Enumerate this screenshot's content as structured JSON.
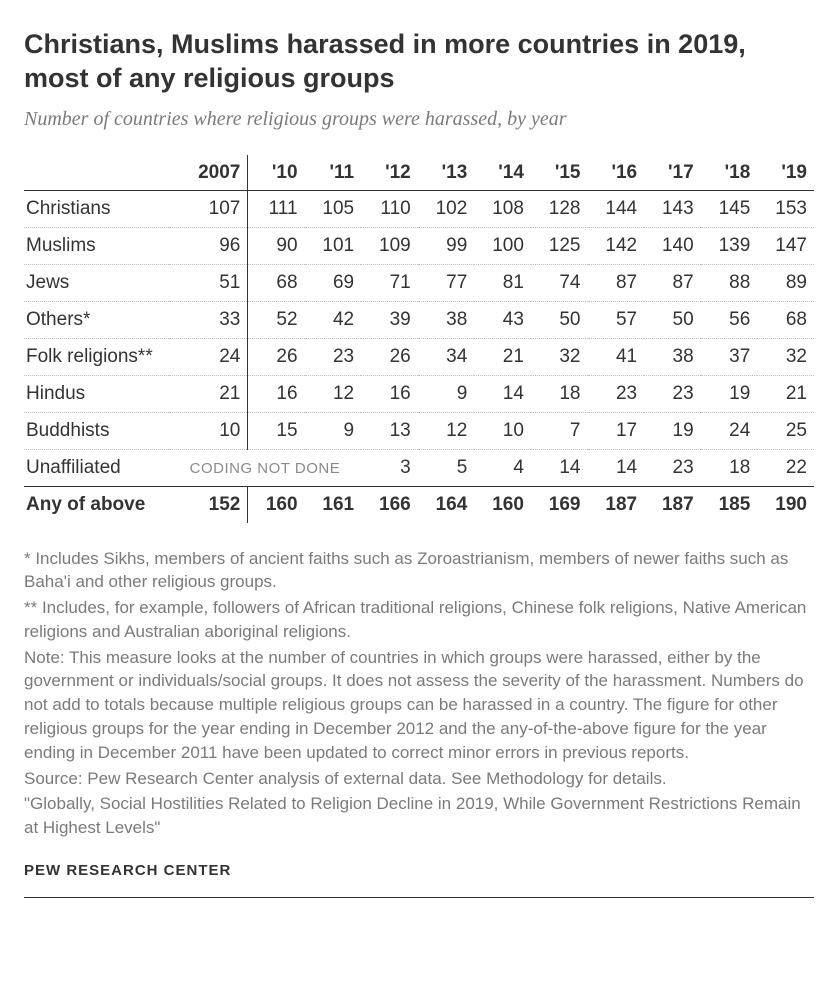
{
  "title": "Christians, Muslims harassed in more countries in 2019, most of any religious groups",
  "subtitle": "Number of countries where religious groups were harassed, by year",
  "table": {
    "columns": [
      "2007",
      "'10",
      "'11",
      "'12",
      "'13",
      "'14",
      "'15",
      "'16",
      "'17",
      "'18",
      "'19"
    ],
    "rows": [
      {
        "label": "Christians",
        "values": [
          "107",
          "111",
          "105",
          "110",
          "102",
          "108",
          "128",
          "144",
          "143",
          "145",
          "153"
        ]
      },
      {
        "label": "Muslims",
        "values": [
          "96",
          "90",
          "101",
          "109",
          "99",
          "100",
          "125",
          "142",
          "140",
          "139",
          "147"
        ]
      },
      {
        "label": "Jews",
        "values": [
          "51",
          "68",
          "69",
          "71",
          "77",
          "81",
          "74",
          "87",
          "87",
          "88",
          "89"
        ]
      },
      {
        "label": "Others*",
        "values": [
          "33",
          "52",
          "42",
          "39",
          "38",
          "43",
          "50",
          "57",
          "50",
          "56",
          "68"
        ]
      },
      {
        "label": "Folk religions**",
        "values": [
          "24",
          "26",
          "23",
          "26",
          "34",
          "21",
          "32",
          "41",
          "38",
          "37",
          "32"
        ]
      },
      {
        "label": "Hindus",
        "values": [
          "21",
          "16",
          "12",
          "16",
          "9",
          "14",
          "18",
          "23",
          "23",
          "19",
          "21"
        ]
      },
      {
        "label": "Buddhists",
        "values": [
          "10",
          "15",
          "9",
          "13",
          "12",
          "10",
          "7",
          "17",
          "19",
          "24",
          "25"
        ]
      }
    ],
    "unaffiliated": {
      "label": "Unaffiliated",
      "coding_note": "CODING NOT DONE",
      "values_from_12": [
        "3",
        "5",
        "4",
        "14",
        "14",
        "23",
        "18",
        "22"
      ]
    },
    "totals": {
      "label": "Any of above",
      "values": [
        "152",
        "160",
        "161",
        "166",
        "164",
        "160",
        "169",
        "187",
        "187",
        "185",
        "190"
      ]
    },
    "header_fontweight": "700",
    "border_color": "#333333",
    "dotted_color": "#bfbfbf",
    "body_fontsize": 19
  },
  "notes": {
    "asterisk1": "* Includes Sikhs, members of ancient faiths such as Zoroastrianism, members of newer faiths such as Baha'i and other religious groups.",
    "asterisk2": "** Includes, for example, followers of African traditional religions, Chinese folk religions, Native American religions and Australian aboriginal religions.",
    "note": "Note: This measure looks at the number of countries in which groups were harassed, either by the government or individuals/social groups. It does not assess the severity of the harassment. Numbers do not add to totals because multiple religious groups can be harassed in a country. The figure for other religious groups for the year ending in December 2012 and the any-of-the-above figure for the year ending in December 2011 have been updated to correct minor errors in previous reports.",
    "source": "Source: Pew Research Center analysis of external data. See Methodology for details.",
    "report": "\"Globally, Social Hostilities Related to Religion Decline in 2019, While Government Restrictions Remain at Highest Levels\""
  },
  "brand": "PEW RESEARCH CENTER",
  "colors": {
    "background": "#ffffff",
    "text_primary": "#333333",
    "text_muted": "#7a7a7a",
    "coding_note": "#8a8a8a"
  }
}
